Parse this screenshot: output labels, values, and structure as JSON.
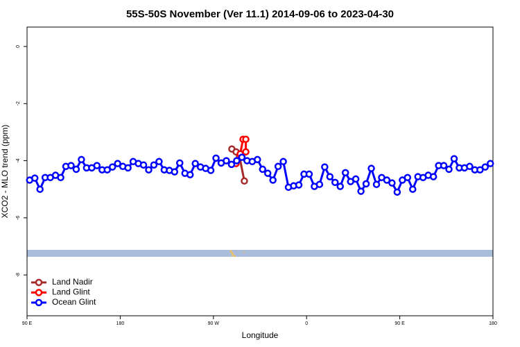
{
  "chart_data": {
    "type": "line",
    "title": "55S-50S November (Ver 11.1)   2014-09-06 to 2023-04-30",
    "x_label": "Longitude",
    "y_label": "XCO2 - MLO trend (ppm)",
    "xlim": [
      90,
      540
    ],
    "xticks": [
      {
        "value": 90,
        "label": "90 E"
      },
      180,
      {
        "value": 270,
        "label": "90 W"
      },
      {
        "value": 360,
        "label": "0"
      },
      {
        "value": 450,
        "label": "90 E"
      },
      {
        "value": 540,
        "label": "180"
      }
    ],
    "ylim": [
      -9.43,
      0.68
    ],
    "yticks": [
      0,
      -2,
      -4,
      -6,
      -8
    ],
    "legend": "bottom-left",
    "series": [
      {
        "name": "Land Nadir",
        "color": "#a52a2a",
        "x": [
          287.8,
          291.9,
          295.2,
          299.9
        ],
        "values": [
          -3.59,
          -3.69,
          -3.86,
          -4.71
        ]
      },
      {
        "name": "Land Glint",
        "color": "#ff0000",
        "x": [
          291.9,
          295.9,
          298.6,
          301.3,
          301.3
        ],
        "values": [
          -4.1,
          -3.76,
          -3.25,
          -3.25,
          -3.69
        ]
      },
      {
        "name": "Ocean Glint",
        "color": "#0000ff",
        "x": [
          92.5,
          97.5,
          102.5,
          107.5,
          112.5,
          117.5,
          122.5,
          127.5,
          132.5,
          137.5,
          142.5,
          147.5,
          152.5,
          157.5,
          162.5,
          167.5,
          172.5,
          177.5,
          182.5,
          187.5,
          192.5,
          197.5,
          202.5,
          207.5,
          212.5,
          217.5,
          222.5,
          227.5,
          232.5,
          237.5,
          242.5,
          247.5,
          252.5,
          257.5,
          262.5,
          267.5,
          272.5,
          277.5,
          282.5,
          287.5,
          292.5,
          297.5,
          302.5,
          307.5,
          312.5,
          317.5,
          322.5,
          327.5,
          332.5,
          337.5,
          342.5,
          347.5,
          352.5,
          357.5,
          362.5,
          367.5,
          372.5,
          377.5,
          382.5,
          387.5,
          392.5,
          397.5,
          402.5,
          407.5,
          412.5,
          417.5,
          422.5,
          427.5,
          432.5,
          437.5,
          442.5,
          447.5,
          452.5,
          457.5,
          462.5,
          467.5,
          472.5,
          477.5,
          482.5,
          487.5,
          492.5,
          497.5,
          502.5,
          507.5,
          512.5,
          517.5,
          522.5,
          527.5,
          532.5,
          537.5
        ],
        "values": [
          -4.68,
          -4.61,
          -5.0,
          -4.59,
          -4.59,
          -4.51,
          -4.59,
          -4.2,
          -4.17,
          -4.3,
          -3.96,
          -4.25,
          -4.25,
          -4.17,
          -4.32,
          -4.32,
          -4.22,
          -4.1,
          -4.2,
          -4.25,
          -4.03,
          -4.1,
          -4.15,
          -4.32,
          -4.15,
          -4.03,
          -4.32,
          -4.34,
          -4.39,
          -4.08,
          -4.44,
          -4.49,
          -4.1,
          -4.22,
          -4.27,
          -4.34,
          -3.91,
          -4.08,
          -4.0,
          -4.13,
          -4.0,
          -3.88,
          -4.0,
          -4.03,
          -3.96,
          -4.3,
          -4.44,
          -4.68,
          -4.2,
          -4.03,
          -4.93,
          -4.88,
          -4.85,
          -4.47,
          -4.47,
          -4.9,
          -4.83,
          -4.22,
          -4.56,
          -4.76,
          -4.9,
          -4.42,
          -4.73,
          -4.64,
          -5.07,
          -4.81,
          -4.27,
          -4.83,
          -4.59,
          -4.68,
          -4.78,
          -5.1,
          -4.68,
          -4.59,
          -5.0,
          -4.56,
          -4.59,
          -4.51,
          -4.56,
          -4.17,
          -4.17,
          -4.3,
          -3.93,
          -4.25,
          -4.25,
          -4.2,
          -4.32,
          -4.32,
          -4.22,
          -4.1
        ]
      }
    ]
  }
}
